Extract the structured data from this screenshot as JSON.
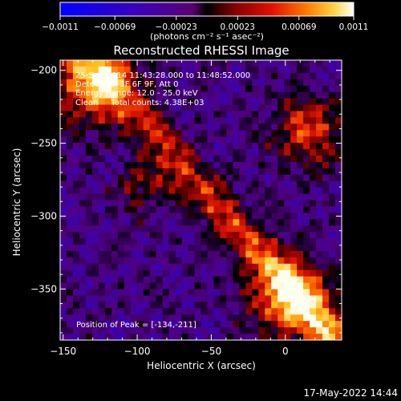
{
  "chart_data": {
    "type": "heatmap",
    "title": "Reconstructed RHESSI Image",
    "xlabel": "Heliocentric X (arcsec)",
    "ylabel": "Heliocentric Y (arcsec)",
    "xlim": [
      -152,
      38
    ],
    "ylim": [
      -385,
      -193
    ],
    "x_ticks": [
      -150,
      -100,
      -50,
      0
    ],
    "x_tick_labels": [
      "−150",
      "−100",
      "−50",
      "0"
    ],
    "y_ticks": [
      -200,
      -250,
      -300,
      -350
    ],
    "y_tick_labels": [
      "−200",
      "−250",
      "−300",
      "−350"
    ],
    "colorbar": {
      "range": [
        -0.0011,
        0.0011
      ],
      "ticks": [
        -0.0011,
        -0.00069,
        -0.00023,
        0.00023,
        0.00069,
        0.0011
      ],
      "tick_labels": [
        "−0.0011",
        "−0.00069",
        "−0.00023",
        "0.00023",
        "0.00069",
        "0.0011"
      ],
      "unit_label": "(photons cm⁻² s⁻¹ asec⁻²)",
      "colormap": [
        "#0000ff",
        "#3a00c0",
        "#5a0080",
        "#000000",
        "#8a0000",
        "#d00000",
        "#ff5a00",
        "#ffb000",
        "#ffff80",
        "#ffffff"
      ]
    },
    "annotations": [
      "25-Sep-2014 11:43:28.000 to 11:48:52.000",
      "Detectors: 3F 6F 9F, Att 0",
      "Energy Range: 12.0 - 25.0 keV",
      "Clean     Total counts: 4.38E+03"
    ],
    "peak_label": "Position of Peak = [-134,-211]",
    "peak": [
      -134,
      -211
    ]
  },
  "footer": {
    "timestamp": "17-May-2022 14:44"
  }
}
